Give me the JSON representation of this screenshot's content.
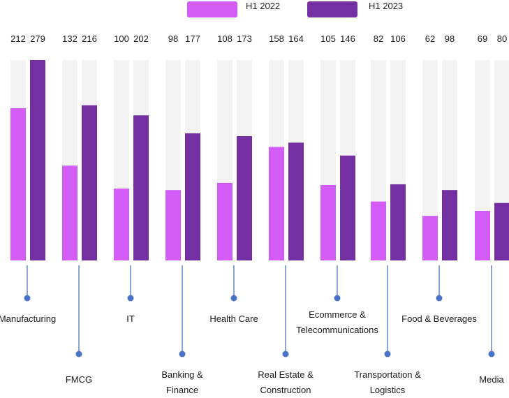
{
  "chart_data": {
    "type": "bar",
    "title": "",
    "xlabel": "",
    "ylabel": "",
    "ylim": [
      0,
      279
    ],
    "grid": false,
    "legend_position": "top-center",
    "colors": {
      "H1 2022": "#d35cf6",
      "H1 2023": "#7430a2",
      "track": "#f3f3f3",
      "connector": "#4a72c8"
    },
    "categories": [
      {
        "label": [
          "Manufacturing"
        ],
        "label_position": "top"
      },
      {
        "label": [
          "FMCG"
        ],
        "label_position": "bottom"
      },
      {
        "label": [
          "IT"
        ],
        "label_position": "top"
      },
      {
        "label": [
          "Banking &",
          "Finance"
        ],
        "label_position": "bottom"
      },
      {
        "label": [
          "Health Care"
        ],
        "label_position": "top"
      },
      {
        "label": [
          "Real Estate &",
          "Construction"
        ],
        "label_position": "bottom"
      },
      {
        "label": [
          "Ecommerce &",
          "Telecommunications"
        ],
        "label_position": "top"
      },
      {
        "label": [
          "Transportation &",
          "Logistics"
        ],
        "label_position": "bottom"
      },
      {
        "label": [
          "Food & Beverages"
        ],
        "label_position": "top"
      },
      {
        "label": [
          "Media"
        ],
        "label_position": "bottom"
      }
    ],
    "series": [
      {
        "name": "H1 2022",
        "values": [
          212,
          132,
          100,
          98,
          108,
          158,
          105,
          82,
          62,
          69
        ]
      },
      {
        "name": "H1 2023",
        "values": [
          279,
          216,
          202,
          177,
          173,
          164,
          146,
          106,
          98,
          80
        ]
      }
    ]
  }
}
